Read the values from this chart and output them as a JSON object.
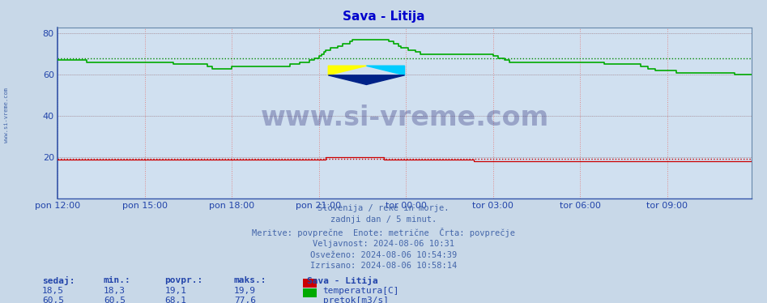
{
  "title": "Sava - Litija",
  "title_color": "#0000cc",
  "bg_color": "#c8d8e8",
  "plot_bg_color": "#d0e0f0",
  "ylim": [
    0,
    83
  ],
  "yticks": [
    20,
    40,
    60,
    80
  ],
  "xtick_labels": [
    "pon 12:00",
    "pon 15:00",
    "pon 18:00",
    "pon 21:00",
    "tor 00:00",
    "tor 03:00",
    "tor 06:00",
    "tor 09:00"
  ],
  "xtick_positions": [
    0,
    36,
    72,
    108,
    144,
    180,
    216,
    252
  ],
  "total_points": 288,
  "temp_color": "#cc0000",
  "flow_color": "#00aa00",
  "temp_avg": 19.1,
  "flow_avg": 68.1,
  "watermark_text": "www.si-vreme.com",
  "watermark_color": "#1a1a6e",
  "left_text": "www.si-vreme.com",
  "info_lines": [
    "Slovenija / reke in morje.",
    "zadnji dan / 5 minut.",
    "Meritve: povprečne  Enote: metrične  Črta: povprečje",
    "Veljavnost: 2024-08-06 10:31",
    "Osveženo: 2024-08-06 10:54:39",
    "Izrisano: 2024-08-06 10:58:14"
  ],
  "legend_title": "Sava - Litija",
  "legend_items": [
    {
      "label": "temperatura[C]",
      "color": "#cc0000"
    },
    {
      "label": "pretok[m3/s]",
      "color": "#00aa00"
    }
  ],
  "stat_labels": [
    "sedaj:",
    "min.:",
    "povpr.:",
    "maks.:"
  ],
  "temp_stats": [
    "18,5",
    "18,3",
    "19,1",
    "19,9"
  ],
  "flow_stats": [
    "60,5",
    "60,5",
    "68,1",
    "77,6"
  ],
  "flow_data": [
    67,
    67,
    67,
    67,
    67,
    67,
    67,
    67,
    67,
    67,
    67,
    67,
    66,
    66,
    66,
    66,
    66,
    66,
    66,
    66,
    66,
    66,
    66,
    66,
    66,
    66,
    66,
    66,
    66,
    66,
    66,
    66,
    66,
    66,
    66,
    66,
    66,
    66,
    66,
    66,
    66,
    66,
    66,
    66,
    66,
    66,
    66,
    66,
    65,
    65,
    65,
    65,
    65,
    65,
    65,
    65,
    65,
    65,
    65,
    65,
    65,
    65,
    64,
    64,
    63,
    63,
    63,
    63,
    63,
    63,
    63,
    63,
    64,
    64,
    64,
    64,
    64,
    64,
    64,
    64,
    64,
    64,
    64,
    64,
    64,
    64,
    64,
    64,
    64,
    64,
    64,
    64,
    64,
    64,
    64,
    64,
    65,
    65,
    65,
    65,
    66,
    66,
    66,
    66,
    67,
    67,
    68,
    68,
    69,
    70,
    71,
    72,
    72,
    73,
    73,
    73,
    74,
    74,
    75,
    75,
    75,
    76,
    77,
    77,
    77,
    77,
    77,
    77,
    77,
    77,
    77,
    77,
    77,
    77,
    77,
    77,
    77,
    76,
    76,
    75,
    75,
    74,
    73,
    73,
    73,
    72,
    72,
    72,
    71,
    71,
    70,
    70,
    70,
    70,
    70,
    70,
    70,
    70,
    70,
    70,
    70,
    70,
    70,
    70,
    70,
    70,
    70,
    70,
    70,
    70,
    70,
    70,
    70,
    70,
    70,
    70,
    70,
    70,
    70,
    70,
    69,
    69,
    68,
    68,
    68,
    67,
    67,
    66,
    66,
    66,
    66,
    66,
    66,
    66,
    66,
    66,
    66,
    66,
    66,
    66,
    66,
    66,
    66,
    66,
    66,
    66,
    66,
    66,
    66,
    66,
    66,
    66,
    66,
    66,
    66,
    66,
    66,
    66,
    66,
    66,
    66,
    66,
    66,
    66,
    66,
    66,
    65,
    65,
    65,
    65,
    65,
    65,
    65,
    65,
    65,
    65,
    65,
    65,
    65,
    65,
    65,
    64,
    64,
    64,
    63,
    63,
    63,
    62,
    62,
    62,
    62,
    62,
    62,
    62,
    62,
    62,
    61,
    61,
    61,
    61,
    61,
    61,
    61,
    61,
    61,
    61,
    61,
    61,
    61,
    61,
    61,
    61,
    61,
    61,
    61,
    61,
    61,
    61,
    61,
    61,
    60,
    60,
    60,
    60,
    60,
    60,
    60,
    60
  ],
  "temp_data": [
    19,
    19,
    19,
    19,
    19,
    19,
    19,
    19,
    19,
    19,
    19,
    19,
    19,
    19,
    19,
    19,
    19,
    19,
    19,
    19,
    19,
    19,
    19,
    19,
    19,
    19,
    19,
    19,
    19,
    19,
    19,
    19,
    19,
    19,
    19,
    19,
    19,
    19,
    19,
    19,
    19,
    19,
    19,
    19,
    19,
    19,
    19,
    19,
    19,
    19,
    19,
    19,
    19,
    19,
    19,
    19,
    19,
    19,
    19,
    19,
    19,
    19,
    19,
    19,
    19,
    19,
    19,
    19,
    19,
    19,
    19,
    19,
    19,
    19,
    19,
    19,
    19,
    19,
    19,
    19,
    19,
    19,
    19,
    19,
    19,
    19,
    19,
    19,
    19,
    19,
    19,
    19,
    19,
    19,
    19,
    19,
    19,
    19,
    19,
    19,
    19,
    19,
    19,
    19,
    19,
    19,
    19,
    19,
    19,
    19,
    19,
    20,
    20,
    20,
    20,
    20,
    20,
    20,
    20,
    20,
    20,
    20,
    20,
    20,
    20,
    20,
    20,
    20,
    20,
    20,
    20,
    20,
    20,
    20,
    20,
    19,
    19,
    19,
    19,
    19,
    19,
    19,
    19,
    19,
    19,
    19,
    19,
    19,
    19,
    19,
    19,
    19,
    19,
    19,
    19,
    19,
    19,
    19,
    19,
    19,
    19,
    19,
    19,
    19,
    19,
    19,
    19,
    19,
    19,
    19,
    19,
    19,
    18,
    18,
    18,
    18,
    18,
    18,
    18,
    18,
    18,
    18,
    18,
    18,
    18,
    18,
    18,
    18,
    18,
    18,
    18,
    18,
    18,
    18,
    18,
    18,
    18,
    18,
    18,
    18,
    18,
    18,
    18,
    18,
    18,
    18,
    18,
    18,
    18,
    18,
    18,
    18,
    18,
    18,
    18,
    18,
    18,
    18,
    18,
    18,
    18,
    18,
    18,
    18,
    18,
    18,
    18,
    18,
    18,
    18,
    18,
    18,
    18,
    18,
    18,
    18,
    18,
    18,
    18,
    18,
    18,
    18,
    18,
    18,
    18,
    18,
    18,
    18,
    18,
    18,
    18,
    18,
    18,
    18,
    18,
    18,
    18,
    18,
    18,
    18,
    18,
    18,
    18,
    18,
    18,
    18,
    18,
    18,
    18,
    18,
    18,
    18,
    18,
    18,
    18,
    18,
    18,
    18,
    18,
    18,
    18,
    18,
    18,
    18,
    18,
    18,
    18,
    19
  ]
}
